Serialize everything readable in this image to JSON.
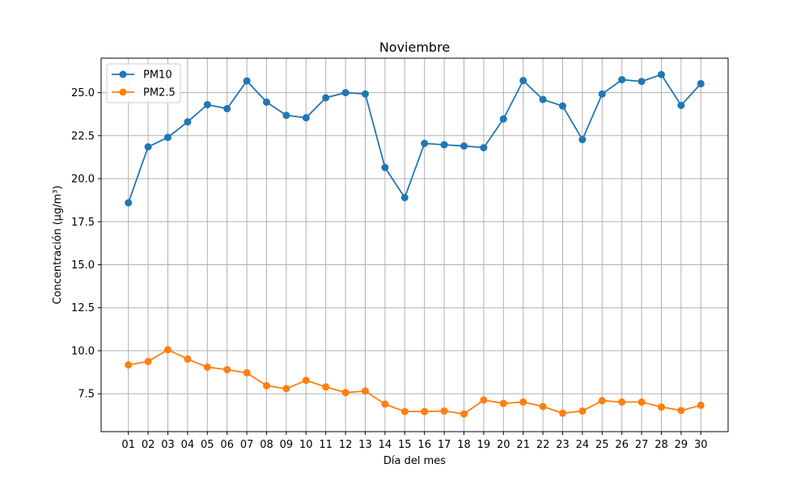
{
  "chart_data": {
    "type": "line",
    "title": "Noviembre",
    "xlabel": "Día del mes",
    "ylabel": "Concentración (µg/m³)",
    "categories": [
      "01",
      "02",
      "03",
      "04",
      "05",
      "06",
      "07",
      "08",
      "09",
      "10",
      "11",
      "12",
      "13",
      "14",
      "15",
      "16",
      "17",
      "18",
      "19",
      "20",
      "21",
      "22",
      "23",
      "24",
      "25",
      "26",
      "27",
      "28",
      "29",
      "30"
    ],
    "yticks": [
      "7.5",
      "10.0",
      "12.5",
      "15.0",
      "17.5",
      "20.0",
      "22.5",
      "25.0"
    ],
    "ylim": [
      5.3,
      27.0
    ],
    "grid": true,
    "legend_position": "top-left",
    "series": [
      {
        "name": "PM10",
        "color": "#1f77b4",
        "values": [
          18.6,
          21.85,
          22.4,
          23.3,
          24.3,
          24.07,
          25.68,
          24.45,
          23.68,
          23.54,
          24.7,
          25.0,
          24.92,
          20.65,
          18.9,
          22.05,
          21.97,
          21.9,
          21.8,
          23.47,
          25.7,
          24.6,
          24.22,
          22.27,
          24.92,
          25.75,
          25.65,
          26.05,
          24.26,
          25.52
        ]
      },
      {
        "name": "PM2.5",
        "color": "#ff7f0e",
        "values": [
          9.18,
          9.38,
          10.06,
          9.52,
          9.05,
          8.9,
          8.72,
          7.97,
          7.8,
          8.28,
          7.9,
          7.57,
          7.66,
          6.9,
          6.47,
          6.47,
          6.5,
          6.33,
          7.14,
          6.94,
          7.02,
          6.76,
          6.37,
          6.5,
          7.1,
          7.02,
          7.02,
          6.73,
          6.53,
          6.83
        ]
      }
    ]
  }
}
